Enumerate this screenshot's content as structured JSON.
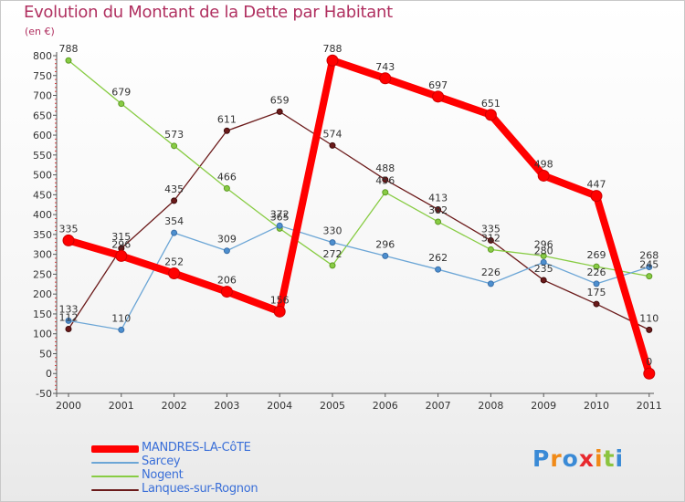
{
  "header": {
    "title": "Evolution du Montant de la Dette par Habitant",
    "unit": "(en €)"
  },
  "chart_data": {
    "type": "line",
    "title": "Evolution du Montant de la Dette par Habitant",
    "ylabel": "(en €)",
    "xlabel": "",
    "categories": [
      "2000",
      "2001",
      "2002",
      "2003",
      "2004",
      "2005",
      "2006",
      "2007",
      "2008",
      "2009",
      "2010",
      "2011"
    ],
    "ylim": [
      -50,
      800
    ],
    "yticks": [
      -50,
      0,
      50,
      100,
      150,
      200,
      250,
      300,
      350,
      400,
      450,
      500,
      550,
      600,
      650,
      700,
      750,
      800
    ],
    "grid": false,
    "legend_position": "bottom-left",
    "series": [
      {
        "name": "MANDRES-LA-CôTE",
        "color": "#ff0000",
        "values": [
          335,
          296,
          252,
          206,
          156,
          788,
          743,
          697,
          651,
          498,
          447,
          0
        ]
      },
      {
        "name": "Sarcey",
        "color": "#6ca6d6",
        "values": [
          133,
          110,
          354,
          309,
          372,
          330,
          296,
          262,
          226,
          280,
          226,
          268
        ]
      },
      {
        "name": "Nogent",
        "color": "#88cc44",
        "values": [
          788,
          679,
          573,
          466,
          365,
          272,
          456,
          382,
          312,
          296,
          269,
          245
        ]
      },
      {
        "name": "Lanques-sur-Rognon",
        "color": "#6b1a1a",
        "values": [
          112,
          315,
          435,
          611,
          659,
          574,
          488,
          413,
          335,
          235,
          175,
          110
        ]
      }
    ]
  },
  "legend": {
    "items": [
      {
        "label": "MANDRES-LA-CôTE",
        "color": "#ff0000"
      },
      {
        "label": "Sarcey",
        "color": "#6ca6d6"
      },
      {
        "label": "Nogent",
        "color": "#88cc44"
      },
      {
        "label": "Lanques-sur-Rognon",
        "color": "#6b1a1a"
      }
    ]
  },
  "logo": {
    "text": "Proxiti",
    "letter_colors": [
      "#3a8ad6",
      "#f08a18",
      "#3a8ad6",
      "#e8292e",
      "#f08a18",
      "#8bc43f",
      "#3a8ad6"
    ]
  }
}
